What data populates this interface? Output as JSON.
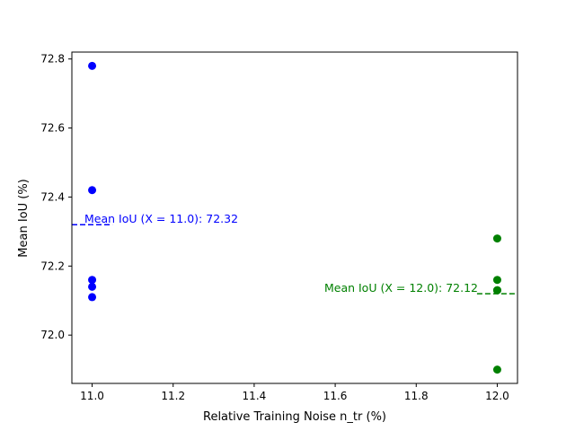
{
  "chart_data": {
    "type": "scatter",
    "title": "",
    "xlabel": "Relative Training Noise n_tr (%)",
    "ylabel": "Mean IoU (%)",
    "xlim": [
      10.95,
      12.05
    ],
    "ylim": [
      71.86,
      72.82
    ],
    "x_ticks": [
      11.0,
      11.2,
      11.4,
      11.6,
      11.8,
      12.0
    ],
    "x_tick_labels": [
      "11.0",
      "11.2",
      "11.4",
      "11.6",
      "11.8",
      "12.0"
    ],
    "y_ticks": [
      72.0,
      72.2,
      72.4,
      72.6,
      72.8
    ],
    "y_tick_labels": [
      "72.0",
      "72.2",
      "72.4",
      "72.6",
      "72.8"
    ],
    "grid": false,
    "legend": "none",
    "series": [
      {
        "color": "#0000ff",
        "points": [
          {
            "x": 11.0,
            "y": 72.78
          },
          {
            "x": 11.0,
            "y": 72.42
          },
          {
            "x": 11.0,
            "y": 72.16
          },
          {
            "x": 11.0,
            "y": 72.14
          },
          {
            "x": 11.0,
            "y": 72.11
          }
        ],
        "mean": {
          "value": 72.32,
          "x_range": [
            10.95,
            11.05
          ],
          "label": "Mean IoU (X = 11.0): 72.32"
        }
      },
      {
        "color": "#008000",
        "points": [
          {
            "x": 12.0,
            "y": 72.28
          },
          {
            "x": 12.0,
            "y": 72.16
          },
          {
            "x": 12.0,
            "y": 72.13
          },
          {
            "x": 12.0,
            "y": 72.13
          },
          {
            "x": 12.0,
            "y": 71.9
          }
        ],
        "mean": {
          "value": 72.12,
          "x_range": [
            11.95,
            12.05
          ],
          "label": "Mean IoU (X = 12.0): 72.12"
        }
      }
    ]
  }
}
